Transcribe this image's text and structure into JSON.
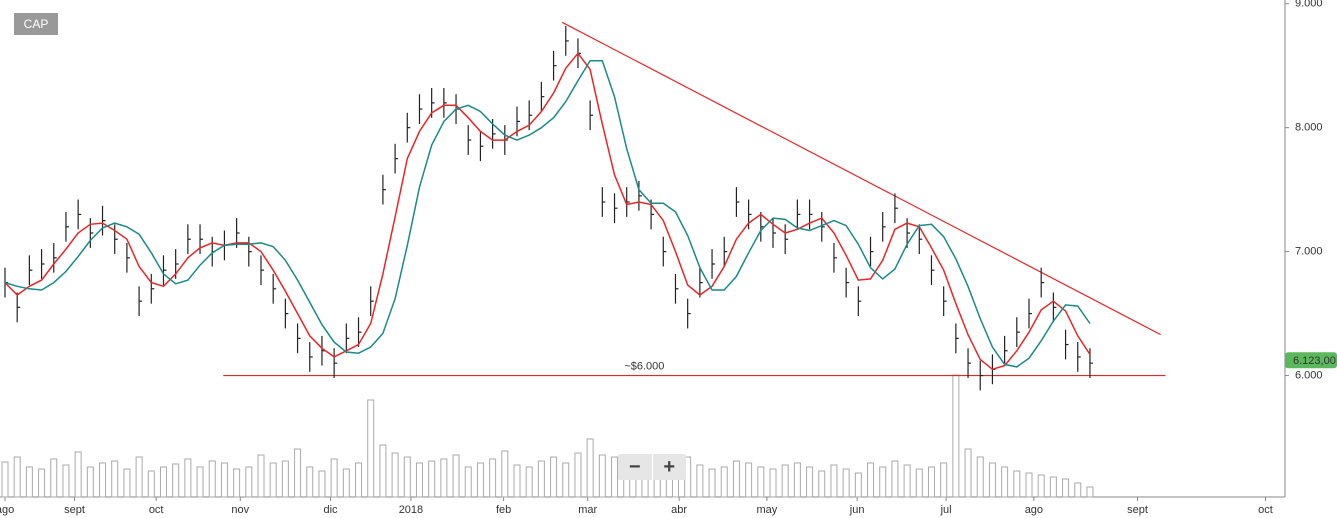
{
  "chart_data": {
    "type": "ohlc",
    "symbol": "CAP",
    "xlim": [
      0,
      105
    ],
    "xticks": [
      {
        "value": 0,
        "label": "ago"
      },
      {
        "value": 5.7,
        "label": "sept"
      },
      {
        "value": 12.4,
        "label": "oct"
      },
      {
        "value": 19.3,
        "label": "nov"
      },
      {
        "value": 26.7,
        "label": "dic"
      },
      {
        "value": 33.3,
        "label": "2018"
      },
      {
        "value": 40.9,
        "label": "feb"
      },
      {
        "value": 47.8,
        "label": "mar"
      },
      {
        "value": 55.3,
        "label": "abr"
      },
      {
        "value": 62.5,
        "label": "may"
      },
      {
        "value": 69.9,
        "label": "jun"
      },
      {
        "value": 77.2,
        "label": "jul"
      },
      {
        "value": 84.4,
        "label": "ago"
      },
      {
        "value": 92.9,
        "label": "sept"
      },
      {
        "value": 103.4,
        "label": "oct"
      }
    ],
    "ylim": [
      5.02,
      9.03
    ],
    "yticks": [
      {
        "value": 6,
        "label": "6.000"
      },
      {
        "value": 7,
        "label": "7.000"
      },
      {
        "value": 8,
        "label": "8.000"
      },
      {
        "value": 9,
        "label": "9.000"
      }
    ],
    "color": "#222222",
    "ohlc": {
      "high": [
        6.87,
        6.67,
        6.97,
        7.02,
        7.07,
        7.32,
        7.42,
        7.27,
        7.37,
        7.22,
        7.07,
        6.72,
        6.82,
        6.97,
        7.02,
        7.22,
        7.22,
        7.12,
        7.17,
        7.27,
        7.12,
        6.97,
        6.82,
        6.62,
        6.42,
        6.27,
        6.32,
        6.22,
        6.42,
        6.47,
        6.72,
        7.62,
        7.87,
        8.12,
        8.27,
        8.32,
        8.32,
        8.27,
        8.02,
        7.97,
        8.07,
        8.02,
        8.17,
        8.22,
        8.37,
        8.62,
        8.82,
        8.72,
        8.22,
        7.52,
        7.47,
        7.52,
        7.57,
        7.42,
        7.12,
        6.82,
        6.62,
        6.87,
        7.02,
        7.12,
        7.52,
        7.42,
        7.32,
        7.27,
        7.22,
        7.42,
        7.42,
        7.32,
        7.07,
        6.87,
        6.72,
        7.12,
        7.32,
        7.47,
        7.27,
        7.22,
        6.97,
        6.72,
        6.42,
        6.22,
        6.12,
        6.17,
        6.32,
        6.47,
        6.62,
        6.87,
        6.67,
        6.37,
        6.27,
        6.22
      ],
      "low": [
        6.63,
        6.43,
        6.73,
        6.78,
        6.83,
        7.08,
        7.18,
        7.03,
        7.13,
        6.98,
        6.83,
        6.48,
        6.58,
        6.73,
        6.78,
        6.98,
        6.98,
        6.88,
        6.93,
        7.03,
        6.88,
        6.73,
        6.58,
        6.38,
        6.18,
        6.03,
        6.08,
        5.98,
        6.18,
        6.23,
        6.48,
        7.38,
        7.63,
        7.88,
        8.03,
        8.08,
        8.08,
        8.03,
        7.78,
        7.73,
        7.83,
        7.78,
        7.93,
        7.98,
        8.13,
        8.38,
        8.58,
        8.48,
        7.98,
        7.28,
        7.23,
        7.28,
        7.33,
        7.18,
        6.88,
        6.58,
        6.38,
        6.63,
        6.78,
        6.88,
        7.28,
        7.18,
        7.08,
        7.03,
        6.98,
        7.18,
        7.18,
        7.08,
        6.83,
        6.63,
        6.48,
        6.88,
        7.08,
        7.23,
        7.03,
        6.98,
        6.73,
        6.48,
        6.18,
        5.98,
        5.88,
        5.93,
        6.08,
        6.23,
        6.38,
        6.63,
        6.43,
        6.13,
        6.03,
        5.98
      ],
      "close": [
        6.75,
        6.55,
        6.85,
        6.9,
        6.95,
        7.2,
        7.3,
        7.15,
        7.25,
        7.1,
        6.95,
        6.6,
        6.7,
        6.85,
        6.9,
        7.1,
        7.1,
        7.0,
        7.05,
        7.15,
        7.0,
        6.85,
        6.7,
        6.5,
        6.3,
        6.15,
        6.2,
        6.1,
        6.3,
        6.35,
        6.6,
        7.5,
        7.75,
        8.0,
        8.15,
        8.2,
        8.2,
        8.15,
        7.9,
        7.85,
        7.95,
        7.9,
        8.05,
        8.1,
        8.25,
        8.5,
        8.7,
        8.6,
        8.1,
        7.4,
        7.35,
        7.4,
        7.45,
        7.3,
        7.0,
        6.7,
        6.5,
        6.75,
        6.9,
        7.0,
        7.4,
        7.3,
        7.2,
        7.15,
        7.1,
        7.3,
        7.3,
        7.2,
        6.95,
        6.75,
        6.6,
        7.0,
        7.2,
        7.35,
        7.15,
        7.1,
        6.85,
        6.6,
        6.3,
        6.1,
        6.0,
        6.05,
        6.2,
        6.35,
        6.5,
        6.75,
        6.55,
        6.25,
        6.15,
        6.1
      ]
    },
    "moving_averages": [
      {
        "color": "#e8262a",
        "values": [
          6.75,
          6.65,
          6.72,
          6.77,
          6.9,
          7.02,
          7.15,
          7.22,
          7.23,
          7.17,
          7.1,
          6.88,
          6.75,
          6.72,
          6.82,
          6.95,
          7.03,
          7.07,
          7.05,
          7.07,
          7.07,
          7.0,
          6.85,
          6.68,
          6.5,
          6.32,
          6.22,
          6.15,
          6.2,
          6.25,
          6.42,
          6.82,
          7.28,
          7.75,
          7.97,
          8.12,
          8.18,
          8.18,
          8.08,
          7.97,
          7.9,
          7.9,
          7.97,
          8.02,
          8.13,
          8.28,
          8.48,
          8.6,
          8.47,
          8.03,
          7.62,
          7.38,
          7.4,
          7.38,
          7.25,
          7.0,
          6.73,
          6.65,
          6.72,
          6.88,
          7.1,
          7.23,
          7.3,
          7.22,
          7.15,
          7.18,
          7.23,
          7.27,
          7.15,
          6.97,
          6.77,
          6.78,
          6.93,
          7.18,
          7.23,
          7.2,
          7.03,
          6.85,
          6.58,
          6.33,
          6.13,
          6.05,
          6.08,
          6.2,
          6.35,
          6.53,
          6.6,
          6.52,
          6.32,
          6.17
        ]
      },
      {
        "color": "#1a8a8a",
        "values": [
          6.75,
          6.72,
          6.7,
          6.69,
          6.75,
          6.84,
          6.96,
          7.09,
          7.19,
          7.23,
          7.2,
          7.14,
          6.99,
          6.82,
          6.74,
          6.77,
          6.89,
          6.99,
          7.05,
          7.06,
          7.06,
          7.07,
          7.04,
          6.93,
          6.77,
          6.59,
          6.41,
          6.27,
          6.19,
          6.18,
          6.23,
          6.34,
          6.62,
          7.05,
          7.52,
          7.86,
          8.05,
          8.15,
          8.18,
          8.13,
          8.03,
          7.94,
          7.9,
          7.94,
          8.0,
          8.08,
          8.21,
          8.38,
          8.54,
          8.54,
          8.25,
          7.83,
          7.5,
          7.39,
          7.39,
          7.32,
          7.13,
          6.87,
          6.69,
          6.69,
          6.8,
          6.99,
          7.17,
          7.27,
          7.26,
          7.19,
          7.17,
          7.21,
          7.25,
          7.21,
          7.06,
          6.87,
          6.78,
          6.86,
          7.06,
          7.21,
          7.22,
          7.12,
          6.94,
          6.72,
          6.46,
          6.23,
          6.09,
          6.07,
          6.14,
          6.28,
          6.44,
          6.57,
          6.56,
          6.42
        ]
      }
    ],
    "volume": {
      "color": "#aaaaaa",
      "lim": [
        0,
        122
      ],
      "values": [
        35,
        40,
        30,
        28,
        38,
        32,
        45,
        30,
        34,
        36,
        28,
        40,
        26,
        30,
        33,
        38,
        30,
        36,
        34,
        28,
        30,
        42,
        34,
        36,
        48,
        30,
        26,
        38,
        28,
        34,
        97,
        52,
        44,
        40,
        34,
        36,
        38,
        42,
        30,
        34,
        38,
        46,
        32,
        30,
        36,
        40,
        34,
        44,
        58,
        42,
        40,
        36,
        38,
        30,
        28,
        34,
        40,
        32,
        28,
        30,
        36,
        34,
        30,
        28,
        32,
        34,
        30,
        26,
        32,
        28,
        24,
        34,
        30,
        36,
        32,
        28,
        30,
        34,
        122,
        48,
        40,
        34,
        30,
        26,
        24,
        22,
        20,
        18,
        14,
        10
      ]
    },
    "trendline": {
      "color": "#e8262a",
      "x": [
        45.7,
        94.8
      ],
      "y": [
        8.85,
        6.33
      ]
    },
    "support": {
      "color": "#e8262a",
      "value": 6.0,
      "label": "~$6.000",
      "x": [
        17.9,
        95.2
      ]
    },
    "last_price": {
      "value": 6.123,
      "label": "6.123,00",
      "color": "#5cb85c"
    },
    "zoom_buttons": [
      "−",
      "+"
    ]
  }
}
